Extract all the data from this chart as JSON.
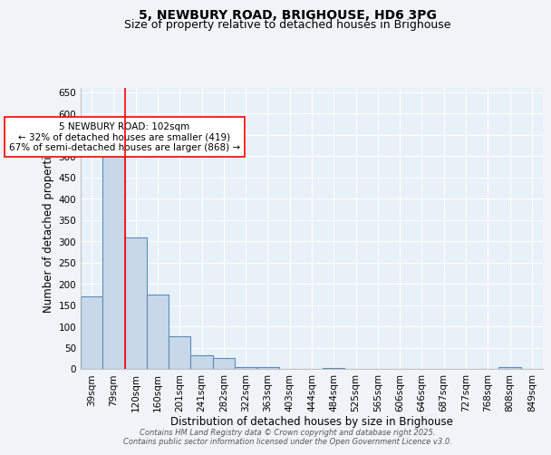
{
  "title": "5, NEWBURY ROAD, BRIGHOUSE, HD6 3PG",
  "subtitle": "Size of property relative to detached houses in Brighouse",
  "xlabel": "Distribution of detached houses by size in Brighouse",
  "ylabel": "Number of detached properties",
  "bar_labels": [
    "39sqm",
    "79sqm",
    "120sqm",
    "160sqm",
    "201sqm",
    "241sqm",
    "282sqm",
    "322sqm",
    "363sqm",
    "403sqm",
    "444sqm",
    "484sqm",
    "525sqm",
    "565sqm",
    "606sqm",
    "646sqm",
    "687sqm",
    "727sqm",
    "768sqm",
    "808sqm",
    "849sqm"
  ],
  "bar_values": [
    170,
    510,
    308,
    175,
    77,
    33,
    25,
    5,
    5,
    0,
    0,
    3,
    0,
    0,
    0,
    0,
    0,
    0,
    0,
    5,
    0
  ],
  "bar_color": "#c8d8e8",
  "bar_edge_color": "#5b8db8",
  "ylim": [
    0,
    660
  ],
  "yticks": [
    0,
    50,
    100,
    150,
    200,
    250,
    300,
    350,
    400,
    450,
    500,
    550,
    600,
    650
  ],
  "red_line_x": 1.5,
  "annotation_text": "5 NEWBURY ROAD: 102sqm\n← 32% of detached houses are smaller (419)\n67% of semi-detached houses are larger (868) →",
  "footer_line1": "Contains HM Land Registry data © Crown copyright and database right 2025.",
  "footer_line2": "Contains public sector information licensed under the Open Government Licence v3.0.",
  "bg_color": "#f0f4f8",
  "plot_bg_color": "#e8f0f8",
  "grid_color": "#ffffff",
  "title_fontsize": 10,
  "subtitle_fontsize": 9,
  "axis_label_fontsize": 8.5,
  "tick_fontsize": 7.5,
  "annotation_fontsize": 7.5,
  "footer_fontsize": 6.0
}
